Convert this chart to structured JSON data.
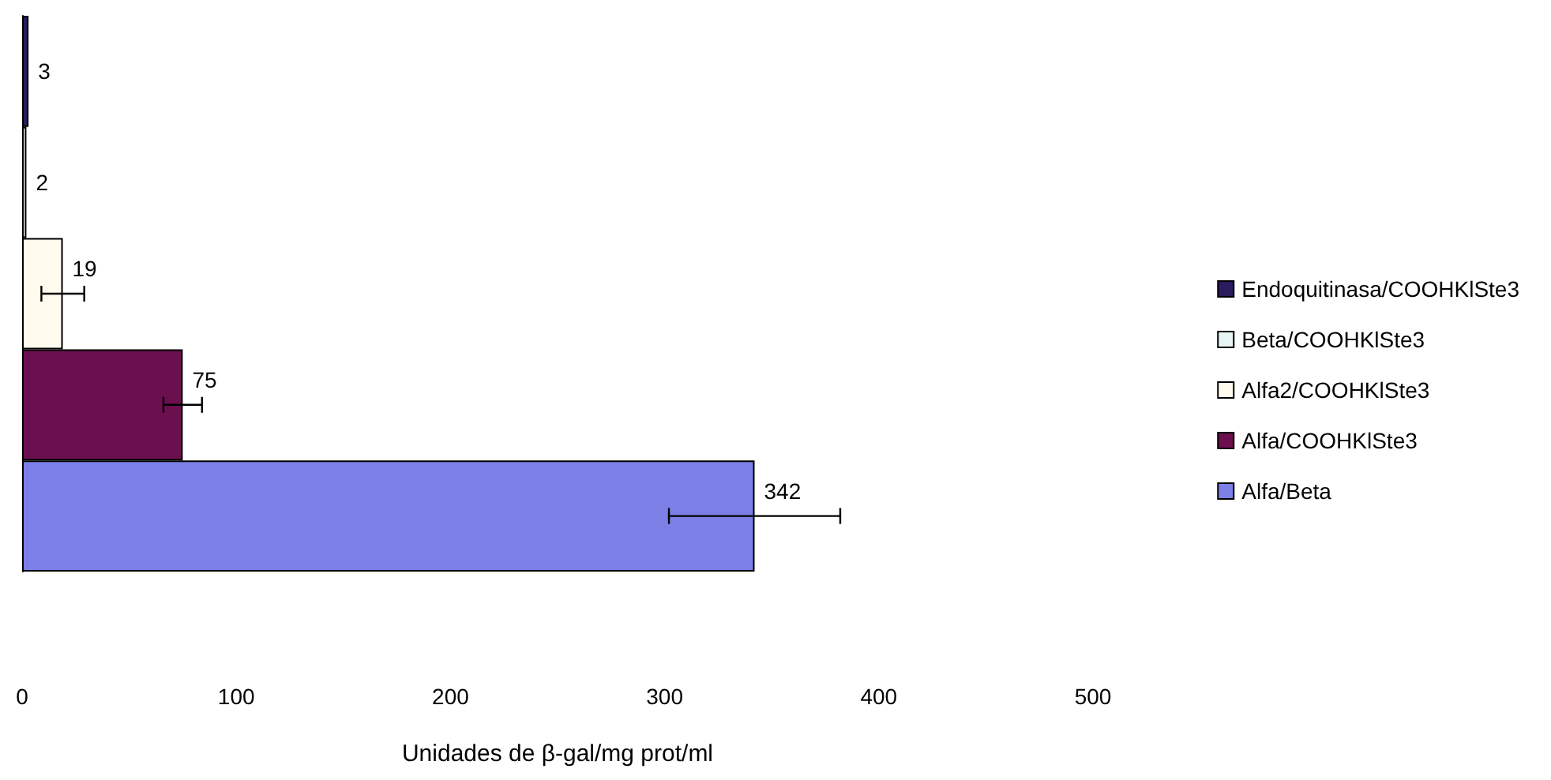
{
  "chart_data": {
    "type": "bar",
    "orientation": "horizontal",
    "xlabel": "Unidades de β-gal/mg prot/ml",
    "categories": [
      null
    ],
    "series": [
      {
        "name": "Endoquitinasa/COOHKlSte3",
        "color": "#2a1a5e",
        "values": [
          3
        ]
      },
      {
        "name": "Beta/COOHKlSte3",
        "color": "#e6f4f2",
        "values": [
          2
        ]
      },
      {
        "name": "Alfa2/COOHKlSte3",
        "color": "#fffbee",
        "values": [
          19
        ],
        "errors": [
          10
        ]
      },
      {
        "name": "Alfa/COOHKlSte3",
        "color": "#6b0f4f",
        "values": [
          75
        ],
        "errors": [
          9
        ]
      },
      {
        "name": "Alfa/Beta",
        "color": "#7b7fe6",
        "values": [
          342
        ],
        "errors": [
          40
        ]
      }
    ],
    "xlim": [
      0,
      500
    ],
    "xticks": [
      0,
      100,
      200,
      300,
      400,
      500
    ],
    "grid": false,
    "legend": "right",
    "data_labels": true
  }
}
